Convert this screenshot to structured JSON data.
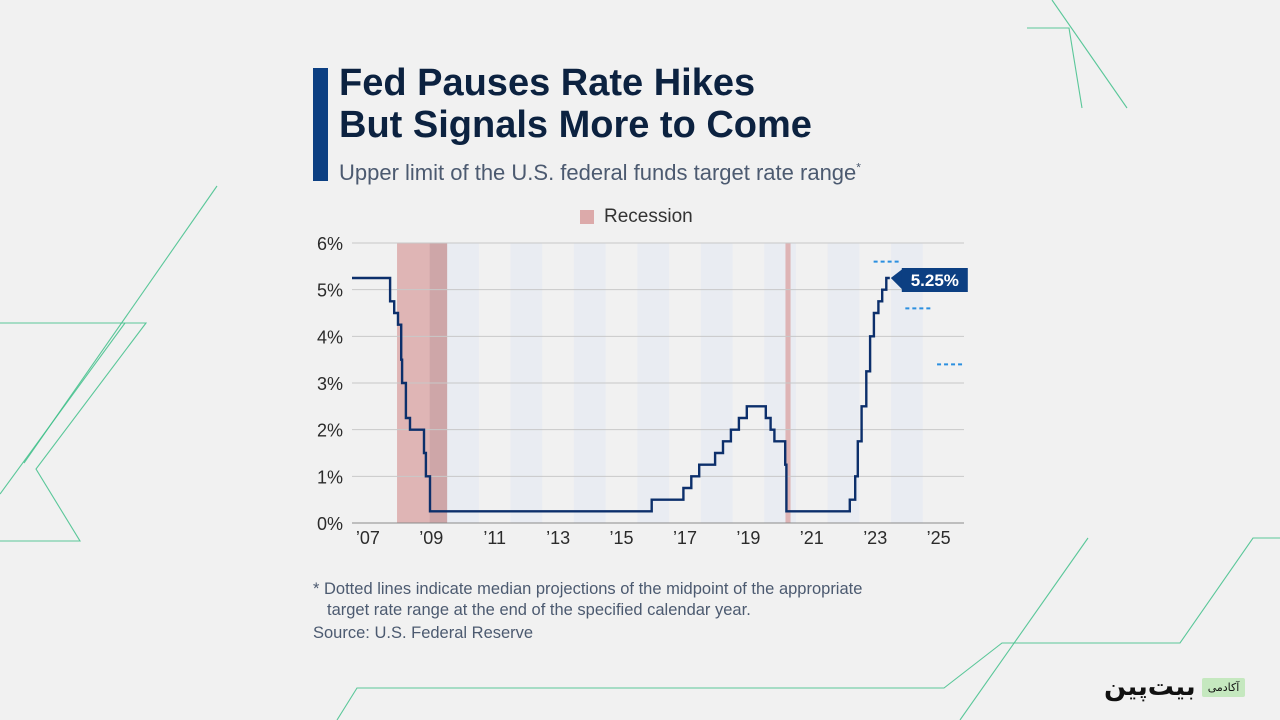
{
  "header": {
    "title": "Fed Pauses Rate Hikes\nBut Signals More to Come",
    "subtitle": "Upper limit of the U.S. federal funds target rate range",
    "subtitle_mark": "*"
  },
  "legend": {
    "label": "Recession",
    "color": "#dcaaaa"
  },
  "footnote": {
    "line1": "* Dotted lines indicate median projections of the midpoint of the appropriate",
    "line2": "target rate range at the end of the specified calendar year."
  },
  "source": "Source: U.S. Federal Reserve",
  "logo": {
    "word": "بیت‌پین",
    "tag": "آکادمی"
  },
  "colors": {
    "line": "#0c2f6b",
    "projection": "#2b8fe0",
    "accent": "#0c3f82",
    "decor": "#3fbf8a",
    "grid": "#c8c8c8"
  },
  "chart_data": {
    "type": "line",
    "title": "Fed Pauses Rate Hikes But Signals More to Come",
    "subtitle": "Upper limit of the U.S. federal funds target rate range",
    "xlim": [
      2006.5,
      2025.8
    ],
    "ylim": [
      0,
      6
    ],
    "grid": true,
    "y_ticks": [
      0,
      1,
      2,
      3,
      4,
      5,
      6
    ],
    "y_tick_labels": [
      "0%",
      "1%",
      "2%",
      "3%",
      "4%",
      "5%",
      "6%"
    ],
    "x_ticks": [
      2007,
      2009,
      2011,
      2013,
      2015,
      2017,
      2019,
      2021,
      2023,
      2025
    ],
    "x_tick_labels": [
      "’07",
      "’09",
      "’11",
      "’13",
      "’15",
      "’17",
      "’19",
      "’21",
      "’23",
      "’25"
    ],
    "recessions": [
      [
        2007.92,
        2009.5
      ],
      [
        2020.17,
        2020.33
      ]
    ],
    "series": [
      {
        "style": "step",
        "points": [
          [
            2006.5,
            5.25
          ],
          [
            2007.7,
            5.25
          ],
          [
            2007.7,
            4.75
          ],
          [
            2007.83,
            4.75
          ],
          [
            2007.83,
            4.5
          ],
          [
            2007.95,
            4.5
          ],
          [
            2007.95,
            4.25
          ],
          [
            2008.05,
            4.25
          ],
          [
            2008.05,
            3.5
          ],
          [
            2008.08,
            3.5
          ],
          [
            2008.08,
            3.0
          ],
          [
            2008.2,
            3.0
          ],
          [
            2008.2,
            2.25
          ],
          [
            2008.33,
            2.25
          ],
          [
            2008.33,
            2.0
          ],
          [
            2008.77,
            2.0
          ],
          [
            2008.77,
            1.5
          ],
          [
            2008.83,
            1.5
          ],
          [
            2008.83,
            1.0
          ],
          [
            2008.96,
            1.0
          ],
          [
            2008.96,
            0.25
          ],
          [
            2015.95,
            0.25
          ],
          [
            2015.95,
            0.5
          ],
          [
            2016.95,
            0.5
          ],
          [
            2016.95,
            0.75
          ],
          [
            2017.2,
            0.75
          ],
          [
            2017.2,
            1.0
          ],
          [
            2017.45,
            1.0
          ],
          [
            2017.45,
            1.25
          ],
          [
            2017.95,
            1.25
          ],
          [
            2017.95,
            1.5
          ],
          [
            2018.2,
            1.5
          ],
          [
            2018.2,
            1.75
          ],
          [
            2018.45,
            1.75
          ],
          [
            2018.45,
            2.0
          ],
          [
            2018.7,
            2.0
          ],
          [
            2018.7,
            2.25
          ],
          [
            2018.95,
            2.25
          ],
          [
            2018.95,
            2.5
          ],
          [
            2019.55,
            2.5
          ],
          [
            2019.55,
            2.25
          ],
          [
            2019.7,
            2.25
          ],
          [
            2019.7,
            2.0
          ],
          [
            2019.82,
            2.0
          ],
          [
            2019.82,
            1.75
          ],
          [
            2020.16,
            1.75
          ],
          [
            2020.16,
            1.25
          ],
          [
            2020.2,
            1.25
          ],
          [
            2020.2,
            0.25
          ],
          [
            2022.2,
            0.25
          ],
          [
            2022.2,
            0.5
          ],
          [
            2022.37,
            0.5
          ],
          [
            2022.37,
            1.0
          ],
          [
            2022.45,
            1.0
          ],
          [
            2022.45,
            1.75
          ],
          [
            2022.57,
            1.75
          ],
          [
            2022.57,
            2.5
          ],
          [
            2022.72,
            2.5
          ],
          [
            2022.72,
            3.25
          ],
          [
            2022.84,
            3.25
          ],
          [
            2022.84,
            4.0
          ],
          [
            2022.96,
            4.0
          ],
          [
            2022.96,
            4.5
          ],
          [
            2023.1,
            4.5
          ],
          [
            2023.1,
            4.75
          ],
          [
            2023.22,
            4.75
          ],
          [
            2023.22,
            5.0
          ],
          [
            2023.35,
            5.0
          ],
          [
            2023.35,
            5.25
          ],
          [
            2023.46,
            5.25
          ]
        ]
      }
    ],
    "projections": [
      {
        "year": 2023,
        "value": 5.6
      },
      {
        "year": 2024,
        "value": 4.6
      },
      {
        "year": 2025,
        "value": 3.4
      }
    ],
    "annotations": [
      {
        "text": "5.25%",
        "x": 2023.46,
        "y": 5.25
      }
    ]
  }
}
